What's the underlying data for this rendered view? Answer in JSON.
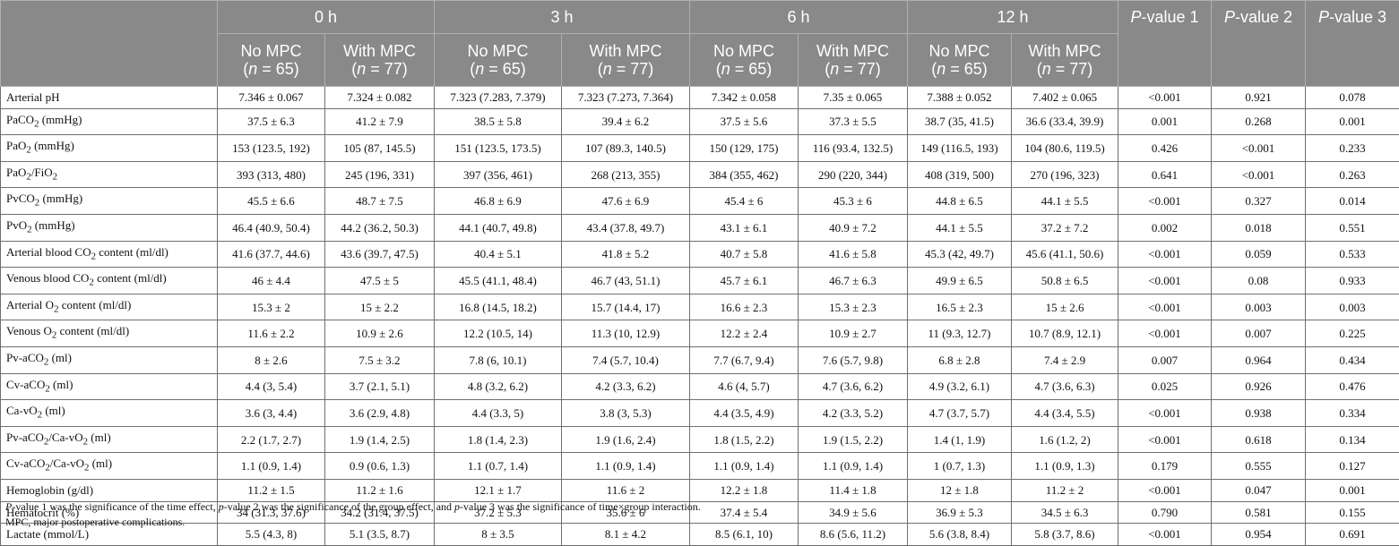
{
  "table": {
    "time_headers": [
      "0 h",
      "3 h",
      "6 h",
      "12 h"
    ],
    "group_headers": [
      {
        "label": "No MPC",
        "n": "65"
      },
      {
        "label": "With MPC",
        "n": "77"
      }
    ],
    "p_headers": [
      {
        "prefix": "P",
        "suffix": "-value 1"
      },
      {
        "prefix": "P",
        "suffix": "-value 2"
      },
      {
        "prefix": "P",
        "suffix": "-value 3"
      }
    ],
    "rows": [
      {
        "label_html": "Arterial pH",
        "values": [
          "7.346 ± 0.067",
          "7.324 ± 0.082",
          "7.323 (7.283, 7.379)",
          "7.323 (7.273, 7.364)",
          "7.342 ± 0.058",
          "7.35 ± 0.065",
          "7.388 ± 0.052",
          "7.402 ± 0.065",
          "<0.001",
          "0.921",
          "0.078"
        ]
      },
      {
        "label_html": "PaCO<sub>2</sub> (mmHg)",
        "values": [
          "37.5 ± 6.3",
          "41.2 ± 7.9",
          "38.5 ± 5.8",
          "39.4 ± 6.2",
          "37.5 ± 5.6",
          "37.3 ± 5.5",
          "38.7 (35, 41.5)",
          "36.6 (33.4, 39.9)",
          "0.001",
          "0.268",
          "0.001"
        ]
      },
      {
        "label_html": "PaO<sub>2</sub> (mmHg)",
        "values": [
          "153 (123.5, 192)",
          "105 (87, 145.5)",
          "151 (123.5, 173.5)",
          "107 (89.3, 140.5)",
          "150 (129, 175)",
          "116 (93.4, 132.5)",
          "149 (116.5, 193)",
          "104 (80.6, 119.5)",
          "0.426",
          "<0.001",
          "0.233"
        ]
      },
      {
        "label_html": "PaO<sub>2</sub>/FiO<sub>2</sub>",
        "values": [
          "393 (313, 480)",
          "245 (196, 331)",
          "397 (356, 461)",
          "268 (213, 355)",
          "384 (355, 462)",
          "290 (220, 344)",
          "408 (319, 500)",
          "270 (196, 323)",
          "0.641",
          "<0.001",
          "0.263"
        ]
      },
      {
        "label_html": "PvCO<sub>2</sub> (mmHg)",
        "values": [
          "45.5 ± 6.6",
          "48.7 ± 7.5",
          "46.8 ± 6.9",
          "47.6 ± 6.9",
          "45.4 ± 6",
          "45.3 ± 6",
          "44.8 ± 6.5",
          "44.1 ± 5.5",
          "<0.001",
          "0.327",
          "0.014"
        ]
      },
      {
        "label_html": "PvO<sub>2</sub> (mmHg)",
        "values": [
          "46.4 (40.9, 50.4)",
          "44.2 (36.2, 50.3)",
          "44.1 (40.7, 49.8)",
          "43.4 (37.8, 49.7)",
          "43.1 ± 6.1",
          "40.9 ± 7.2",
          "44.1 ± 5.5",
          "37.2 ± 7.2",
          "0.002",
          "0.018",
          "0.551"
        ]
      },
      {
        "label_html": "Arterial blood CO<sub>2</sub> content (ml/dl)",
        "values": [
          "41.6 (37.7, 44.6)",
          "43.6 (39.7, 47.5)",
          "40.4 ± 5.1",
          "41.8 ± 5.2",
          "40.7 ± 5.8",
          "41.6 ± 5.8",
          "45.3 (42, 49.7)",
          "45.6 (41.1, 50.6)",
          "<0.001",
          "0.059",
          "0.533"
        ]
      },
      {
        "label_html": "Venous blood CO<sub>2</sub> content (ml/dl)",
        "values": [
          "46 ± 4.4",
          "47.5 ± 5",
          "45.5 (41.1, 48.4)",
          "46.7 (43, 51.1)",
          "45.7 ± 6.1",
          "46.7 ± 6.3",
          "49.9 ± 6.5",
          "50.8 ± 6.5",
          "<0.001",
          "0.08",
          "0.933"
        ]
      },
      {
        "label_html": "Arterial O<sub>2</sub> content (ml/dl)",
        "values": [
          "15.3 ± 2",
          "15 ± 2.2",
          "16.8 (14.5, 18.2)",
          "15.7 (14.4, 17)",
          "16.6 ± 2.3",
          "15.3 ± 2.3",
          "16.5 ± 2.3",
          "15 ± 2.6",
          "<0.001",
          "0.003",
          "0.003"
        ]
      },
      {
        "label_html": "Venous O<sub>2</sub> content (ml/dl)",
        "values": [
          "11.6 ± 2.2",
          "10.9 ± 2.6",
          "12.2 (10.5, 14)",
          "11.3 (10, 12.9)",
          "12.2 ± 2.4",
          "10.9 ± 2.7",
          "11 (9.3, 12.7)",
          "10.7 (8.9, 12.1)",
          "<0.001",
          "0.007",
          "0.225"
        ]
      },
      {
        "label_html": "Pv-aCO<sub>2</sub> (ml)",
        "values": [
          "8 ± 2.6",
          "7.5 ± 3.2",
          "7.8 (6, 10.1)",
          "7.4 (5.7, 10.4)",
          "7.7 (6.7, 9.4)",
          "7.6 (5.7, 9.8)",
          "6.8 ± 2.8",
          "7.4 ± 2.9",
          "0.007",
          "0.964",
          "0.434"
        ]
      },
      {
        "label_html": "Cv-aCO<sub>2</sub> (ml)",
        "values": [
          "4.4 (3, 5.4)",
          "3.7 (2.1, 5.1)",
          "4.8 (3.2, 6.2)",
          "4.2 (3.3, 6.2)",
          "4.6 (4, 5.7)",
          "4.7 (3.6, 6.2)",
          "4.9 (3.2, 6.1)",
          "4.7 (3.6, 6.3)",
          "0.025",
          "0.926",
          "0.476"
        ]
      },
      {
        "label_html": "Ca-vO<sub>2</sub> (ml)",
        "values": [
          "3.6 (3, 4.4)",
          "3.6 (2.9, 4.8)",
          "4.4 (3.3, 5)",
          "3.8 (3, 5.3)",
          "4.4 (3.5, 4.9)",
          "4.2 (3.3, 5.2)",
          "4.7 (3.7, 5.7)",
          "4.4 (3.4, 5.5)",
          "<0.001",
          "0.938",
          "0.334"
        ]
      },
      {
        "label_html": "Pv-aCO<sub>2</sub>/Ca-vO<sub>2</sub> (ml)",
        "values": [
          "2.2 (1.7, 2.7)",
          "1.9 (1.4, 2.5)",
          "1.8 (1.4, 2.3)",
          "1.9 (1.6, 2.4)",
          "1.8 (1.5, 2.2)",
          "1.9 (1.5, 2.2)",
          "1.4 (1, 1.9)",
          "1.6 (1.2, 2)",
          "<0.001",
          "0.618",
          "0.134"
        ]
      },
      {
        "label_html": "Cv-aCO<sub>2</sub>/Ca-vO<sub>2</sub> (ml)",
        "values": [
          "1.1 (0.9, 1.4)",
          "0.9 (0.6, 1.3)",
          "1.1 (0.7, 1.4)",
          "1.1 (0.9, 1.4)",
          "1.1 (0.9, 1.4)",
          "1.1 (0.9, 1.4)",
          "1 (0.7, 1.3)",
          "1.1 (0.9, 1.3)",
          "0.179",
          "0.555",
          "0.127"
        ]
      },
      {
        "label_html": "Hemoglobin (g/dl)",
        "values": [
          "11.2 ± 1.5",
          "11.2 ± 1.6",
          "12.1 ± 1.7",
          "11.6 ± 2",
          "12.2 ± 1.8",
          "11.4 ± 1.8",
          "12 ± 1.8",
          "11.2 ± 2",
          "<0.001",
          "0.047",
          "0.001"
        ]
      },
      {
        "label_html": "Hematocrit (%)",
        "values": [
          "34 (31.3, 37.6)",
          "34.2 (31.4, 37.5)",
          "37.2 ± 5.3",
          "35.6 ± 6",
          "37.4 ± 5.4",
          "34.9 ± 5.6",
          "36.9 ± 5.3",
          "34.5 ± 6.3",
          "0.790",
          "0.581",
          "0.155"
        ]
      },
      {
        "label_html": "Lactate (mmol/L)",
        "values": [
          "5.5 (4.3, 8)",
          "5.1 (3.5, 8.7)",
          "8 ± 3.5",
          "8.1 ± 4.2",
          "8.5 (6.1, 10)",
          "8.6 (5.6, 11.2)",
          "5.6 (3.8, 8.4)",
          "5.8 (3.7, 8.6)",
          "<0.001",
          "0.954",
          "0.691"
        ]
      }
    ]
  },
  "footnote_html": "<i>P</i>-value 1 was the significance of the time effect, <i>p</i>-value 2 was the significance of the group effect, and <i>p</i>-value 3 was the significance of time×group interaction.",
  "abbreviation": "MPC, major postoperative complications."
}
